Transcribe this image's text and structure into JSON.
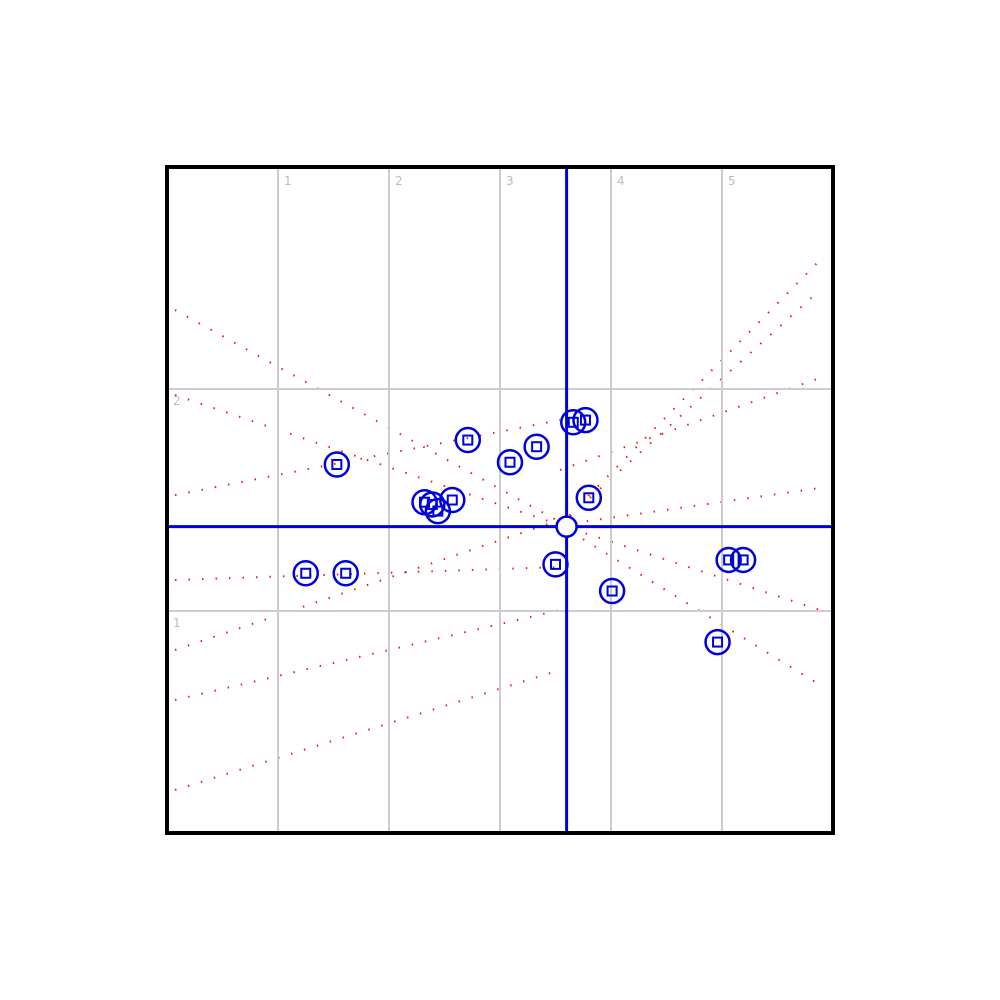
{
  "chart_data": {
    "type": "scatter",
    "series": [
      {
        "color": "#0000dd",
        "x": [
          1.53,
          2.71,
          3.33,
          3.09,
          3.66,
          3.77,
          3.8,
          2.32,
          2.39,
          2.44,
          2.57,
          1.25,
          1.61,
          3.5,
          4.01,
          5.06,
          5.19,
          4.96
        ],
        "values": [
          1.66,
          1.77,
          1.74,
          1.67,
          1.85,
          1.86,
          1.51,
          1.49,
          1.48,
          1.45,
          1.5,
          1.17,
          1.17,
          1.21,
          1.09,
          1.23,
          1.23,
          0.86
        ]
      }
    ],
    "crosshair": {
      "x": 3.6,
      "y": 1.38
    },
    "xlim": [
      0,
      6
    ],
    "xticks": [
      1,
      2,
      3,
      4,
      5
    ],
    "ylim": [
      0,
      3
    ],
    "yticks": [
      1,
      2
    ],
    "grid": true
  }
}
